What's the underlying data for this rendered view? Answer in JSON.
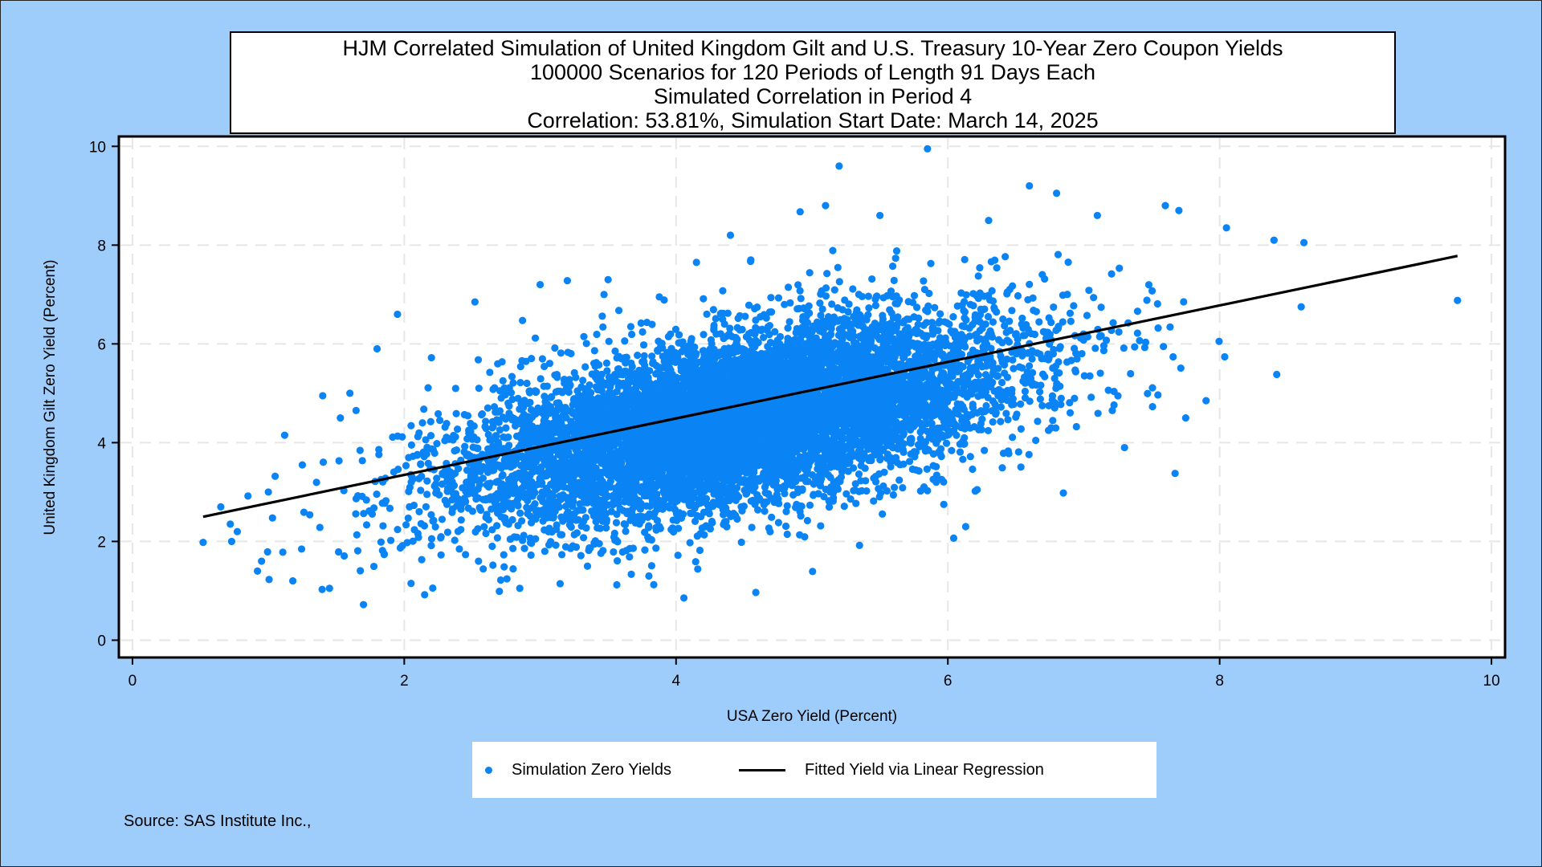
{
  "title_lines": [
    "HJM Correlated Simulation of United Kingdom Gilt and U.S. Treasury 10-Year Zero Coupon Yields",
    "100000 Scenarios for 120 Periods of Length 91 Days Each",
    "Simulated Correlation in Period 4",
    "Correlation: 53.81%,  Simulation Start Date:     March 14, 2025"
  ],
  "legend": {
    "scatter_label": "Simulation Zero Yields",
    "line_label": "Fitted Yield via Linear Regression"
  },
  "footnote": "Source: SAS Institute Inc.,",
  "colors": {
    "background": "#9ecdfb",
    "plot_area": "#ffffff",
    "points": "#0a84f5",
    "fit_line": "#000000",
    "grid": "#e6e6e6"
  },
  "chart_data": {
    "type": "scatter",
    "xlabel": "USA Zero Yield (Percent)",
    "ylabel": "United Kingdom Gilt Zero Yield (Percent)",
    "xlim": [
      -0.1,
      10.1
    ],
    "ylim": [
      -0.35,
      10.2
    ],
    "xticks": [
      0,
      2,
      4,
      6,
      8,
      10
    ],
    "yticks": [
      0,
      2,
      4,
      6,
      8,
      10
    ],
    "grid": true,
    "legend_position": "bottom",
    "correlation": 0.5381,
    "cloud": {
      "n_scenarios": 100000,
      "x_mean": 4.45,
      "x_sd": 1.0,
      "y_mean": 4.45,
      "y_sd": 1.0,
      "rho": 0.5381
    },
    "series": [
      {
        "name": "Simulation Zero Yields",
        "kind": "scatter",
        "points": [
          [
            0.52,
            1.98
          ],
          [
            0.65,
            2.7
          ],
          [
            0.72,
            2.35
          ],
          [
            0.73,
            2.0
          ],
          [
            0.85,
            2.92
          ],
          [
            0.92,
            1.4
          ],
          [
            0.95,
            1.6
          ],
          [
            1.0,
            3.0
          ],
          [
            1.05,
            3.32
          ],
          [
            1.12,
            4.15
          ],
          [
            1.18,
            1.2
          ],
          [
            1.25,
            3.55
          ],
          [
            1.4,
            4.95
          ],
          [
            1.45,
            1.05
          ],
          [
            1.53,
            4.5
          ],
          [
            1.6,
            5.0
          ],
          [
            1.7,
            0.72
          ],
          [
            1.8,
            5.9
          ],
          [
            1.95,
            6.6
          ],
          [
            2.05,
            1.15
          ],
          [
            2.15,
            0.92
          ],
          [
            2.2,
            5.72
          ],
          [
            2.52,
            6.85
          ],
          [
            2.7,
            0.99
          ],
          [
            2.85,
            1.05
          ],
          [
            3.0,
            7.2
          ],
          [
            3.2,
            7.28
          ],
          [
            3.5,
            7.3
          ],
          [
            3.8,
            1.3
          ],
          [
            4.15,
            7.65
          ],
          [
            4.4,
            8.2
          ],
          [
            4.55,
            7.7
          ],
          [
            5.1,
            8.8
          ],
          [
            5.2,
            9.6
          ],
          [
            5.35,
            1.92
          ],
          [
            5.5,
            8.6
          ],
          [
            5.85,
            9.95
          ],
          [
            6.3,
            8.5
          ],
          [
            6.6,
            9.2
          ],
          [
            6.8,
            9.05
          ],
          [
            6.85,
            2.98
          ],
          [
            7.1,
            8.6
          ],
          [
            7.3,
            3.9
          ],
          [
            7.6,
            8.8
          ],
          [
            7.7,
            8.7
          ],
          [
            7.75,
            4.5
          ],
          [
            7.9,
            4.85
          ],
          [
            8.05,
            8.35
          ],
          [
            8.4,
            8.1
          ],
          [
            8.42,
            5.38
          ],
          [
            8.6,
            6.75
          ],
          [
            8.62,
            8.05
          ],
          [
            9.75,
            6.88
          ]
        ]
      },
      {
        "name": "Fitted Yield via Linear Regression",
        "kind": "line",
        "x": [
          0.52,
          9.75
        ],
        "y": [
          2.5,
          7.78
        ]
      }
    ]
  }
}
